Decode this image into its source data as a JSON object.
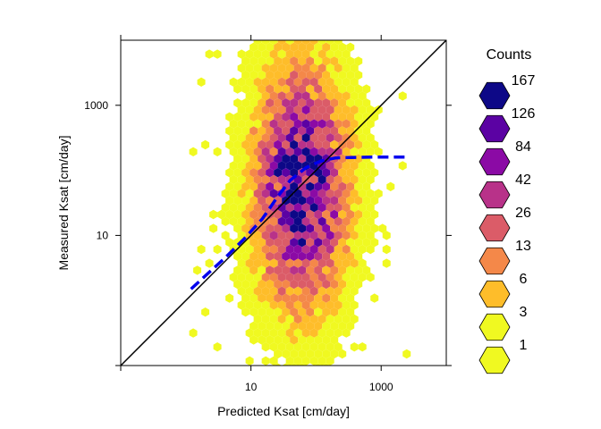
{
  "chart_data": {
    "type": "hexbin",
    "xlabel": "Predicted Ksat [cm/day]",
    "ylabel": "Measured Ksat [cm/day]",
    "x_scale": "log10",
    "y_scale": "log10",
    "xlim": [
      0.1,
      10000
    ],
    "ylim": [
      0.1,
      10000
    ],
    "x_ticks": [
      {
        "value": 0.1,
        "label": ""
      },
      {
        "value": 10,
        "label": "10"
      },
      {
        "value": 1000,
        "label": "1000"
      }
    ],
    "y_ticks": [
      {
        "value": 0.1,
        "label": ""
      },
      {
        "value": 10,
        "label": "10"
      },
      {
        "value": 1000,
        "label": "1000"
      }
    ],
    "reference_line": {
      "type": "1:1",
      "color": "#000000"
    },
    "smooth_line": {
      "color": "#0000ee",
      "style": "dashed",
      "x": [
        1.2,
        2,
        4,
        8,
        15,
        25,
        40,
        70,
        120,
        200,
        400,
        800,
        1500,
        2500
      ],
      "y": [
        1.5,
        2.4,
        4.5,
        9,
        18,
        38,
        70,
        110,
        140,
        155,
        158,
        160,
        160,
        160
      ]
    },
    "legend": {
      "title": "Counts",
      "position": "right",
      "labels": [
        "167",
        "126",
        "84",
        "42",
        "26",
        "13",
        "6",
        "3",
        "1"
      ],
      "colors": [
        "#0d0887",
        "#5b02a3",
        "#8b0aa5",
        "#b83289",
        "#db5c68",
        "#f48849",
        "#febd2a",
        "#f0f921",
        "#f0f921"
      ]
    },
    "hexbin": {
      "x_center": 60,
      "y_center": 60,
      "x_spread_log": 0.45,
      "y_spread_log": 1.15,
      "x_range": [
        1.2,
        2500
      ],
      "y_range": [
        0.1,
        10000
      ]
    }
  }
}
